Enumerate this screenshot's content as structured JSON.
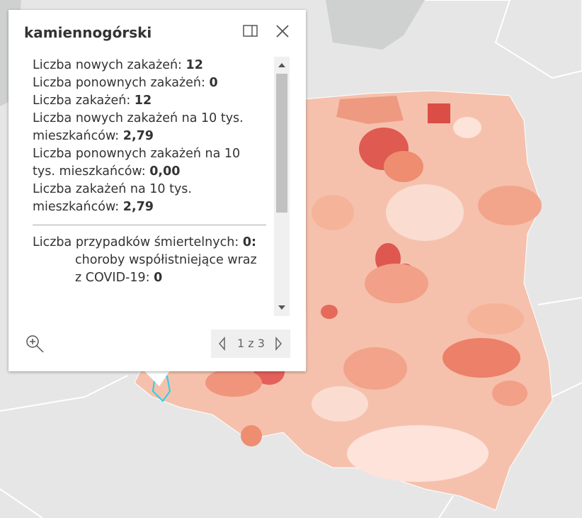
{
  "popup": {
    "title": "kamiennogórski",
    "fields": [
      {
        "label": "Liczba nowych zakażeń:",
        "value": "12"
      },
      {
        "label": "Liczba ponownych zakażeń:",
        "value": "0"
      },
      {
        "label": "Liczba zakażeń:",
        "value": "12"
      },
      {
        "label": "Liczba nowych zakażeń na 10 tys. mieszkańców:",
        "value": "2,79"
      },
      {
        "label": "Liczba ponownych zakażeń na 10 tys. mieszkańców:",
        "value": "0,00"
      },
      {
        "label": "Liczba zakażeń na 10 tys. mieszkańców:",
        "value": "2,79"
      }
    ],
    "deaths": {
      "label": "Liczba przypadków śmiertelnych:",
      "value": "0:"
    },
    "sub": {
      "label": "choroby współistniejące wraz z COVID-19:",
      "value": "0"
    },
    "pager": "1 z 3"
  }
}
